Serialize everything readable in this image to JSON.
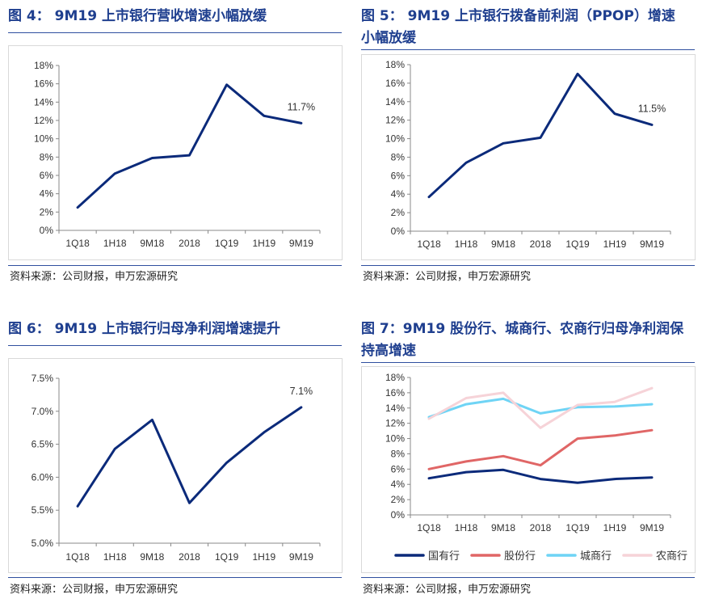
{
  "panels": [
    {
      "title_lines": [
        "图 4：  9M19 上市银行营收增速小幅放缓"
      ],
      "source": "资料来源：公司财报，申万宏源研究"
    },
    {
      "title_lines": [
        "图 5：  9M19 上市银行拨备前利润（PPOP）增速",
        "小幅放缓"
      ],
      "source": "资料来源：公司财报，申万宏源研究"
    },
    {
      "title_lines": [
        "图 6：  9M19 上市银行归母净利润增速提升"
      ],
      "source": "资料来源：公司财报，申万宏源研究"
    },
    {
      "title_lines": [
        "图 7：9M19 股份行、城商行、农商行归母净利润保",
        "持高增速"
      ],
      "source": "资料来源：公司财报，申万宏源研究"
    }
  ],
  "chart_data": [
    {
      "type": "line",
      "categories": [
        "1Q18",
        "1H18",
        "9M18",
        "2018",
        "1Q19",
        "1H19",
        "9M19"
      ],
      "series": [
        {
          "values": [
            2.5,
            6.2,
            7.9,
            8.2,
            15.9,
            12.5,
            11.7
          ],
          "color": "#0b2a7a"
        }
      ],
      "ylim": [
        0,
        18
      ],
      "ystep": 2,
      "yformat": "pct0",
      "annotation": {
        "text": "11.7%",
        "index": 6
      }
    },
    {
      "type": "line",
      "categories": [
        "1Q18",
        "1H18",
        "9M18",
        "2018",
        "1Q19",
        "1H19",
        "9M19"
      ],
      "series": [
        {
          "values": [
            3.7,
            7.4,
            9.5,
            10.1,
            17.0,
            12.7,
            11.5
          ],
          "color": "#0b2a7a"
        }
      ],
      "ylim": [
        0,
        18
      ],
      "ystep": 2,
      "yformat": "pct0",
      "annotation": {
        "text": "11.5%",
        "index": 6
      }
    },
    {
      "type": "line",
      "categories": [
        "1Q18",
        "1H18",
        "9M18",
        "2018",
        "1Q19",
        "1H19",
        "9M19"
      ],
      "series": [
        {
          "values": [
            5.56,
            6.43,
            6.87,
            5.61,
            6.22,
            6.68,
            7.06
          ],
          "color": "#0b2a7a"
        }
      ],
      "ylim": [
        5.0,
        7.5
      ],
      "ystep": 0.5,
      "yformat": "pct1",
      "annotation": {
        "text": "7.1%",
        "index": 6
      }
    },
    {
      "type": "line",
      "categories": [
        "1Q18",
        "1H18",
        "9M18",
        "2018",
        "1Q19",
        "1H19",
        "9M19"
      ],
      "series": [
        {
          "name": "国有行",
          "values": [
            4.8,
            5.6,
            5.9,
            4.7,
            4.2,
            4.7,
            4.9
          ],
          "color": "#0b2a7a"
        },
        {
          "name": "股份行",
          "values": [
            6.0,
            7.0,
            7.7,
            6.5,
            10.0,
            10.4,
            11.1
          ],
          "color": "#e06666"
        },
        {
          "name": "城商行",
          "values": [
            12.8,
            14.5,
            15.2,
            13.3,
            14.1,
            14.2,
            14.5
          ],
          "color": "#6fd4f5"
        },
        {
          "name": "农商行",
          "values": [
            12.6,
            15.3,
            16.0,
            11.4,
            14.4,
            14.8,
            16.6
          ],
          "color": "#f6d3d8"
        }
      ],
      "ylim": [
        0,
        18
      ],
      "ystep": 2,
      "yformat": "pct0",
      "legend_position": "bottom"
    }
  ]
}
